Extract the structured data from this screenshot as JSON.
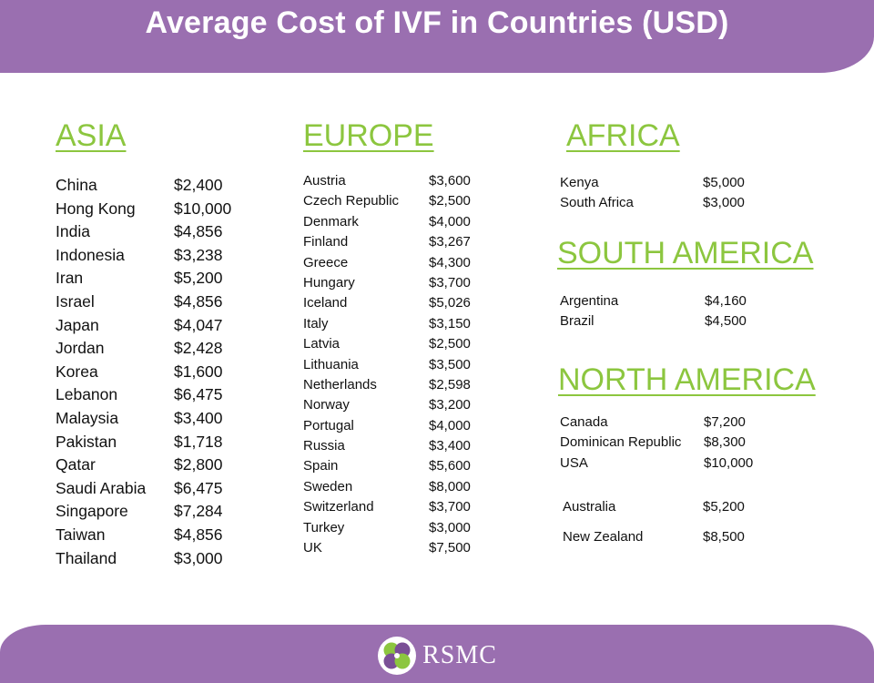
{
  "header": {
    "title": "Average Cost of IVF in Countries (USD)"
  },
  "brand": {
    "name": "RSMC",
    "primary_color": "#9a6fb0",
    "accent_color": "#8cc63f",
    "logo_icon": "clover-logo-icon"
  },
  "regions": {
    "asia": {
      "title": "ASIA",
      "items": [
        {
          "country": "China",
          "cost": "$2,400"
        },
        {
          "country": "Hong Kong",
          "cost": "$10,000"
        },
        {
          "country": "India",
          "cost": "$4,856"
        },
        {
          "country": "Indonesia",
          "cost": "$3,238"
        },
        {
          "country": "Iran",
          "cost": "$5,200"
        },
        {
          "country": "Israel",
          "cost": "$4,856"
        },
        {
          "country": "Japan",
          "cost": "$4,047"
        },
        {
          "country": "Jordan",
          "cost": "$2,428"
        },
        {
          "country": "Korea",
          "cost": "$1,600"
        },
        {
          "country": "Lebanon",
          "cost": "$6,475"
        },
        {
          "country": "Malaysia",
          "cost": "$3,400"
        },
        {
          "country": "Pakistan",
          "cost": "$1,718"
        },
        {
          "country": "Qatar",
          "cost": "$2,800"
        },
        {
          "country": "Saudi Arabia",
          "cost": "$6,475"
        },
        {
          "country": "Singapore",
          "cost": "$7,284"
        },
        {
          "country": "Taiwan",
          "cost": "$4,856"
        },
        {
          "country": "Thailand",
          "cost": "$3,000"
        }
      ]
    },
    "europe": {
      "title": "EUROPE",
      "items": [
        {
          "country": "Austria",
          "cost": "$3,600"
        },
        {
          "country": "Czech Republic",
          "cost": "$2,500"
        },
        {
          "country": "Denmark",
          "cost": "$4,000"
        },
        {
          "country": "Finland",
          "cost": "$3,267"
        },
        {
          "country": "Greece",
          "cost": "$4,300"
        },
        {
          "country": "Hungary",
          "cost": "$3,700"
        },
        {
          "country": "Iceland",
          "cost": "$5,026"
        },
        {
          "country": "Italy",
          "cost": "$3,150"
        },
        {
          "country": "Latvia",
          "cost": "$2,500"
        },
        {
          "country": "Lithuania",
          "cost": "$3,500"
        },
        {
          "country": "Netherlands",
          "cost": "$2,598"
        },
        {
          "country": "Norway",
          "cost": "$3,200"
        },
        {
          "country": "Portugal",
          "cost": "$4,000"
        },
        {
          "country": "Russia",
          "cost": "$3,400"
        },
        {
          "country": "Spain",
          "cost": "$5,600"
        },
        {
          "country": "Sweden",
          "cost": "$8,000"
        },
        {
          "country": "Switzerland",
          "cost": "$3,700"
        },
        {
          "country": "Turkey",
          "cost": "$3,000"
        },
        {
          "country": "UK",
          "cost": "$7,500"
        }
      ]
    },
    "africa": {
      "title": "AFRICA",
      "items": [
        {
          "country": "Kenya",
          "cost": "$5,000"
        },
        {
          "country": "South Africa",
          "cost": "$3,000"
        }
      ]
    },
    "south_america": {
      "title": "SOUTH AMERICA",
      "items": [
        {
          "country": "Argentina",
          "cost": "$4,160"
        },
        {
          "country": "Brazil",
          "cost": "$4,500"
        }
      ]
    },
    "north_america": {
      "title": "NORTH AMERICA",
      "items": [
        {
          "country": "Canada",
          "cost": "$7,200"
        },
        {
          "country": "Dominican Republic",
          "cost": "$8,300"
        },
        {
          "country": "USA",
          "cost": "$10,000"
        }
      ]
    },
    "oceania": {
      "items": [
        {
          "country": "Australia",
          "cost": "$5,200"
        },
        {
          "country": "New Zealand",
          "cost": "$8,500"
        }
      ]
    }
  }
}
